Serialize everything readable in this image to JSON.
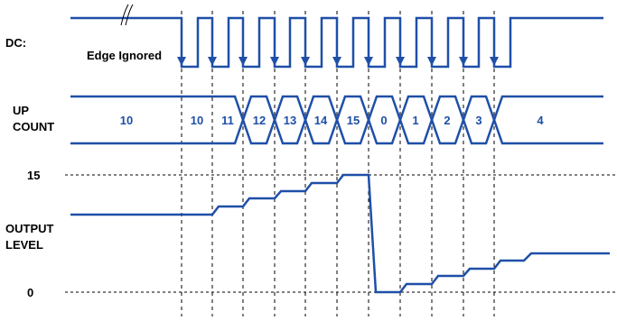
{
  "labels": {
    "dc": "DC:",
    "edge_ignored": "Edge Ignored",
    "up_line1": "UP",
    "up_line2": "COUNT",
    "output_line1": "OUTPUT",
    "output_line2": "LEVEL",
    "level_max": "15",
    "level_min": "0"
  },
  "counts": [
    "10",
    "10",
    "11",
    "12",
    "13",
    "14",
    "15",
    "0",
    "1",
    "2",
    "3",
    "4"
  ],
  "output_levels": [
    7,
    7,
    8,
    9,
    10,
    11,
    12,
    13,
    14,
    15,
    0,
    1,
    2,
    3,
    4,
    5,
    6
  ],
  "colors": {
    "signal": "#1f4fa8",
    "grid": "#000000",
    "text": "#000000"
  }
}
